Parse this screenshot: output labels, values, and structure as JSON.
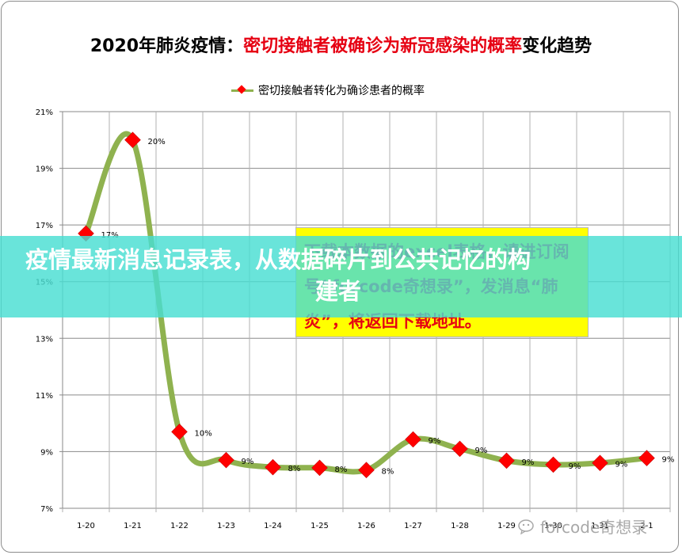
{
  "title": {
    "prefix": "2020年肺炎疫情：",
    "highlight": "密切接触者被确诊为新冠感染的概率",
    "suffix": "变化趋势",
    "highlight_color": "#e60012"
  },
  "legend": {
    "label": "密切接触者转化为确诊患者的概率",
    "line_color": "#8fb24f",
    "marker_color": "#ff0000"
  },
  "notice_box": {
    "text": "下载本数据的excel表格，请进订阅号“forcode奇想录”，发消息“肺炎”，将返回下载地址。",
    "background": "#ffff00",
    "text_color": "#e60012"
  },
  "banner": {
    "line1": "疫情最新消息记录表，从数据碎片到公共记忆的构",
    "line2": "建者"
  },
  "watermark": {
    "text": "forcode奇想录"
  },
  "chart_data": {
    "type": "line",
    "title": "2020年肺炎疫情：密切接触者被确诊为新冠感染的概率变化趋势",
    "xlabel": "",
    "ylabel": "",
    "categories": [
      "1-20",
      "1-21",
      "1-22",
      "1-23",
      "1-24",
      "1-25",
      "1-26",
      "1-27",
      "1-28",
      "1-29",
      "1-30",
      "1-31",
      "2-1"
    ],
    "series": [
      {
        "name": "密切接触者转化为确诊患者的概率",
        "values": [
          16.7,
          20.0,
          9.7,
          8.7,
          8.45,
          8.43,
          8.35,
          9.43,
          9.1,
          8.68,
          8.54,
          8.6,
          8.77
        ],
        "data_labels": [
          "17%",
          "20%",
          "10%",
          "9%",
          "8%",
          "8%",
          "8%",
          "9%",
          "9%",
          "9%",
          "9%",
          "9%",
          "9%"
        ],
        "line_color": "#8fb24f",
        "marker": "diamond",
        "marker_color": "#ff0000",
        "smooth": true
      }
    ],
    "ylim": [
      7,
      21
    ],
    "yticks": [
      "7%",
      "9%",
      "11%",
      "13%",
      "15%",
      "17%",
      "19%",
      "21%"
    ],
    "grid": true,
    "legend_position": "top"
  }
}
